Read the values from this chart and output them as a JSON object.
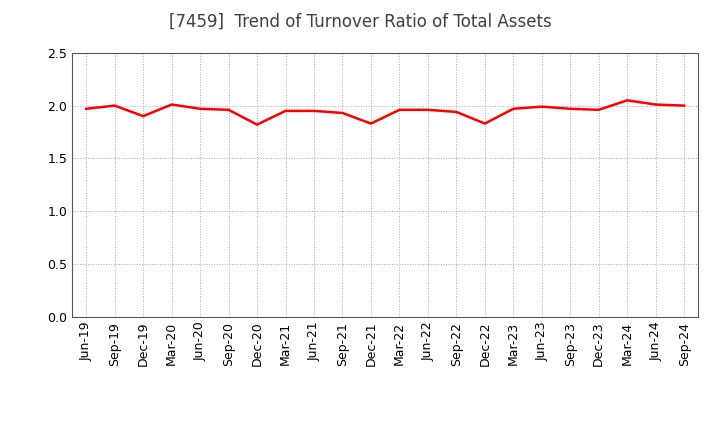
{
  "title": "[7459]  Trend of Turnover Ratio of Total Assets",
  "x_labels": [
    "Jun-19",
    "Sep-19",
    "Dec-19",
    "Mar-20",
    "Jun-20",
    "Sep-20",
    "Dec-20",
    "Mar-21",
    "Jun-21",
    "Sep-21",
    "Dec-21",
    "Mar-22",
    "Jun-22",
    "Sep-22",
    "Dec-22",
    "Mar-23",
    "Jun-23",
    "Sep-23",
    "Dec-23",
    "Mar-24",
    "Jun-24",
    "Sep-24"
  ],
  "values": [
    1.97,
    2.0,
    1.9,
    2.01,
    1.97,
    1.96,
    1.82,
    1.95,
    1.95,
    1.93,
    1.83,
    1.96,
    1.96,
    1.94,
    1.83,
    1.97,
    1.99,
    1.97,
    1.96,
    2.05,
    2.01,
    2.0
  ],
  "line_color": "#FF0000",
  "line_width": 1.8,
  "ylim": [
    0.0,
    2.5
  ],
  "yticks": [
    0.0,
    0.5,
    1.0,
    1.5,
    2.0,
    2.5
  ],
  "background_color": "#ffffff",
  "grid_color": "#aaaaaa",
  "title_fontsize": 12,
  "tick_fontsize": 9,
  "title_color": "#404040"
}
